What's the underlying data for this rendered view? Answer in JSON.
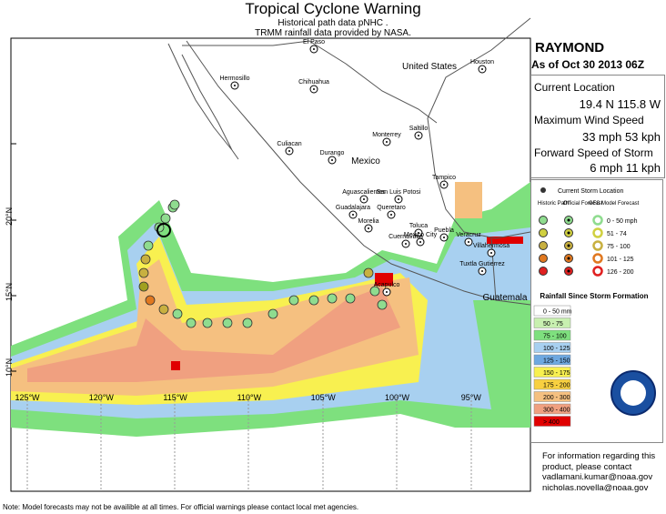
{
  "header": {
    "title": "Tropical Cyclone Warning",
    "credit_1": "Historical path data pNHC .",
    "credit_2": "TRMM rainfall data provided by NASA."
  },
  "storm": {
    "name": "RAYMOND",
    "as_of": "As of Oct 30 2013 06Z",
    "location_label": "Current Location",
    "location": "19.4 N 115.8 W",
    "wind_label": "Maximum Wind Speed",
    "wind": "33 mph  53 kph",
    "speed_label": "Forward Speed of Storm",
    "speed": "6 mph  11 kph"
  },
  "legend": {
    "current": "Current Storm Location",
    "columns": [
      "Historic Path",
      "Official Forecast",
      "GFS Model Forecast"
    ],
    "wind_classes": [
      "0 - 50 mph",
      "51 - 74",
      "75 - 100",
      "101 - 125",
      "126 - 200"
    ],
    "rain_title": "Rainfall Since Storm Formation",
    "rain_classes": [
      "0 - 50 mm",
      "50 - 75",
      "75 - 100",
      "100 - 125",
      "125 - 150",
      "150 - 175",
      "175 - 200",
      "200 - 300",
      "300 - 400",
      "> 400"
    ]
  },
  "map": {
    "lon_labels": [
      "125°W",
      "120°W",
      "115°W",
      "110°W",
      "105°W",
      "100°W",
      "95°W"
    ],
    "lat_labels": [
      "20°N",
      "15°N",
      "10°N"
    ],
    "places": [
      "El Paso",
      "Houston",
      "United States",
      "Hermosillo",
      "Chihuahua",
      "Culiacan",
      "Monterrey",
      "Saltillo",
      "Durango",
      "Mexico",
      "Tampico",
      "Aguascalientes",
      "San Luis Potosi",
      "Guadalajara",
      "Queretaro",
      "Morelia",
      "Toluca",
      "Mexico City",
      "Puebla",
      "Cuernavaca",
      "Veracruz",
      "Villahermosa",
      "Tuxtla Gutierrez",
      "Acapulco",
      "Guatemala"
    ]
  },
  "contact": [
    "For information regarding this",
    "product, please contact",
    "vadlamani.kumar@noaa.gov",
    "nicholas.novella@noaa.gov"
  ],
  "note": "Note: Model forecasts may not be availible at all times.  For official warnings please contact local met agencies."
}
